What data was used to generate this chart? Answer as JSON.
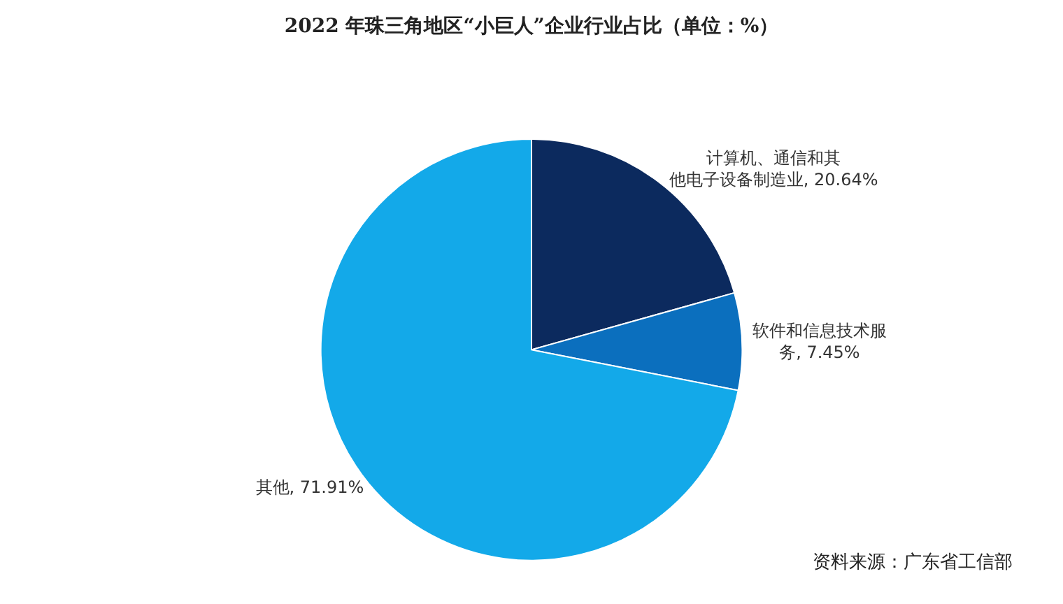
{
  "chart_data": {
    "type": "pie",
    "title": "2022 年珠三角地区“小巨人”企业行业占比（单位：%）",
    "categories": [
      "计算机、通信和其他电子设备制造业",
      "软件和信息技术服务",
      "其他"
    ],
    "values": [
      20.64,
      7.45,
      71.91
    ],
    "value_labels": [
      "20.64%",
      "7.45%",
      "71.91%"
    ],
    "colors": [
      "#0c2a5e",
      "#0b6fbe",
      "#13a9e9"
    ],
    "annotations": [
      "资料来源：广东省工信部"
    ],
    "legend": false
  }
}
